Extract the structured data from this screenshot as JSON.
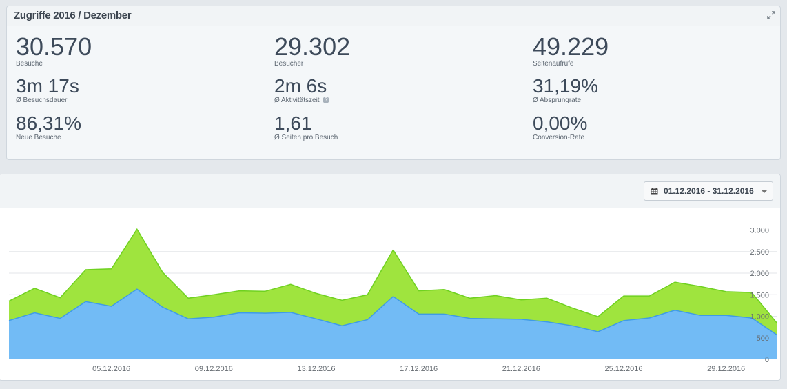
{
  "stats_panel": {
    "title": "Zugriffe 2016 / Dezember",
    "stats": [
      {
        "value": "30.570",
        "label": "Besuche"
      },
      {
        "value": "29.302",
        "label": "Besucher"
      },
      {
        "value": "49.229",
        "label": "Seitenaufrufe"
      },
      {
        "value": "3m 17s",
        "label": "Ø Besuchsdauer"
      },
      {
        "value": "2m 6s",
        "label": "Ø Aktivitätszeit"
      },
      {
        "value": "31,19%",
        "label": "Ø Absprungrate"
      },
      {
        "value": "86,31%",
        "label": "Neue Besuche"
      },
      {
        "value": "1,61",
        "label": "Ø Seiten pro Besuch"
      },
      {
        "value": "0,00%",
        "label": "Conversion-Rate"
      }
    ]
  },
  "date_range": "01.12.2016 - 31.12.2016",
  "icons": {
    "expand": "expand-icon",
    "calendar": "calendar-icon",
    "help": "help-icon"
  },
  "colors": {
    "area_front": "#72bbf5",
    "line_front": "#3f9be6",
    "area_back": "#9fe43e",
    "line_back": "#6fd120",
    "grid": "#e3e6e9"
  },
  "chart_data": {
    "type": "area",
    "x": [
      "01.12.2016",
      "02.12.2016",
      "03.12.2016",
      "04.12.2016",
      "05.12.2016",
      "06.12.2016",
      "07.12.2016",
      "08.12.2016",
      "09.12.2016",
      "10.12.2016",
      "11.12.2016",
      "12.12.2016",
      "13.12.2016",
      "14.12.2016",
      "15.12.2016",
      "16.12.2016",
      "17.12.2016",
      "18.12.2016",
      "19.12.2016",
      "20.12.2016",
      "21.12.2016",
      "22.12.2016",
      "23.12.2016",
      "24.12.2016",
      "25.12.2016",
      "26.12.2016",
      "27.12.2016",
      "28.12.2016",
      "29.12.2016",
      "30.12.2016",
      "31.12.2016"
    ],
    "x_tick_labels": [
      "05.12.2016",
      "09.12.2016",
      "13.12.2016",
      "17.12.2016",
      "21.12.2016",
      "25.12.2016",
      "29.12.2016"
    ],
    "series": [
      {
        "values": [
          1350,
          1650,
          1430,
          2080,
          2100,
          3020,
          2020,
          1420,
          1500,
          1590,
          1580,
          1740,
          1530,
          1370,
          1500,
          2540,
          1590,
          1620,
          1420,
          1480,
          1380,
          1420,
          1190,
          990,
          1470,
          1470,
          1790,
          1690,
          1570,
          1550,
          830
        ]
      },
      {
        "values": [
          900,
          1080,
          950,
          1340,
          1230,
          1630,
          1210,
          940,
          980,
          1080,
          1070,
          1090,
          940,
          780,
          920,
          1460,
          1050,
          1050,
          950,
          940,
          930,
          870,
          780,
          640,
          900,
          960,
          1140,
          1020,
          1020,
          960,
          560
        ]
      }
    ],
    "y_ticks": [
      0,
      500,
      1000,
      1500,
      2000,
      2500,
      3000
    ],
    "y_tick_labels": [
      "0",
      "500",
      "1.000",
      "1.500",
      "2.000",
      "2.500",
      "3.000"
    ],
    "ylim": [
      0,
      3200
    ]
  }
}
